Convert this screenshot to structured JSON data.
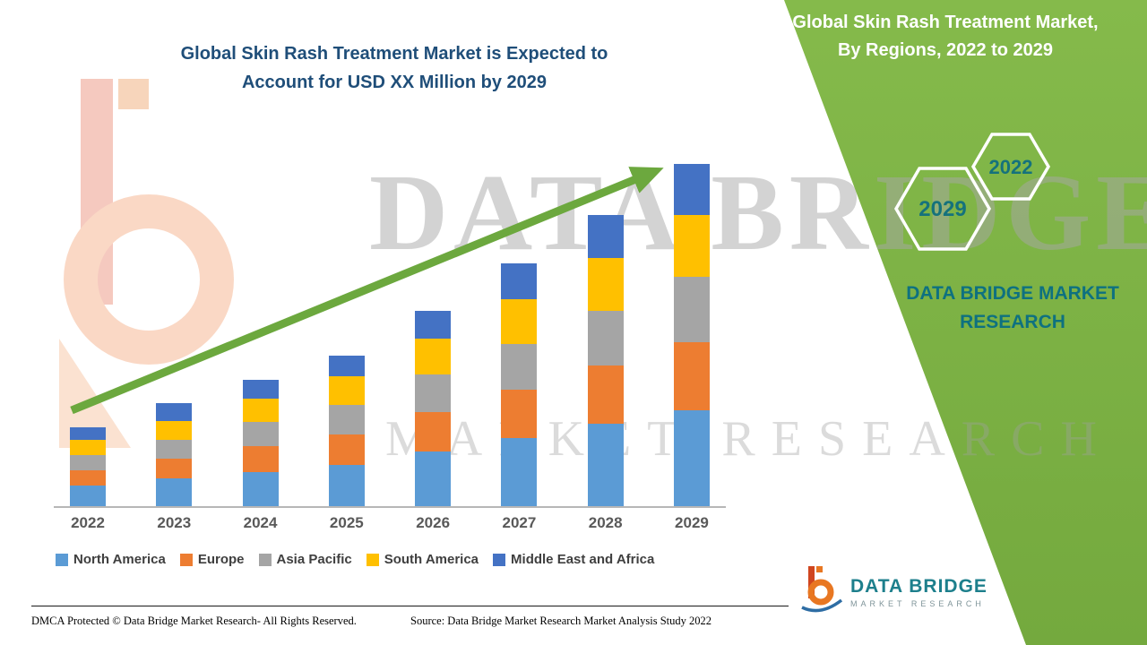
{
  "title": {
    "line1": "Global Skin Rash Treatment Market is Expected to",
    "line2": "Account for USD XX Million by 2029"
  },
  "panel": {
    "title_line1": "Global Skin Rash Treatment Market,",
    "title_line2": "By Regions, 2022 to 2029",
    "hex_back_year": "2029",
    "hex_front_year": "2022",
    "brand_line1": "DATA BRIDGE MARKET",
    "brand_line2": "RESEARCH"
  },
  "watermark": {
    "big": "DATA BRIDGE",
    "sub": "MARKET RESEARCH"
  },
  "chart_data": {
    "type": "bar",
    "stacked": true,
    "title": "Global Skin Rash Treatment Market is Expected to Account for USD XX Million by 2029",
    "categories": [
      "2022",
      "2023",
      "2024",
      "2025",
      "2026",
      "2027",
      "2028",
      "2029"
    ],
    "series": [
      {
        "name": "North America",
        "color": "#5B9BD5",
        "values": [
          6,
          8,
          10,
          12,
          16,
          20,
          24,
          28
        ]
      },
      {
        "name": "Europe",
        "color": "#ED7D31",
        "values": [
          4.5,
          6,
          7.5,
          9,
          11.5,
          14,
          17,
          20
        ]
      },
      {
        "name": "Asia Pacific",
        "color": "#A5A5A5",
        "values": [
          4.5,
          5.5,
          7,
          8.5,
          11,
          13.5,
          16,
          19
        ]
      },
      {
        "name": "South America",
        "color": "#FFC000",
        "values": [
          4.5,
          5.5,
          7,
          8.5,
          10.5,
          13,
          15.5,
          18
        ]
      },
      {
        "name": "Middle East and Africa",
        "color": "#4472C4",
        "values": [
          3.5,
          5,
          5.5,
          6,
          8,
          10.5,
          12.5,
          15
        ]
      }
    ],
    "xlabel": "",
    "ylabel": "",
    "ylim": [
      0,
      100
    ],
    "grid": false,
    "legend_position": "bottom",
    "annotations": [
      "upward trend arrow"
    ]
  },
  "footer": {
    "dmca": "DMCA Protected © Data Bridge Market Research- All Rights Reserved.",
    "source": "Source: Data Bridge Market Research Market Analysis Study 2022",
    "logo_title": "DATA BRIDGE",
    "logo_subtitle": "MARKET RESEARCH"
  },
  "colors": {
    "accent_green": "#74a93e",
    "arrow_green": "#6CA83E",
    "title_blue": "#1F4E79",
    "brand_teal": "#0e7180"
  }
}
